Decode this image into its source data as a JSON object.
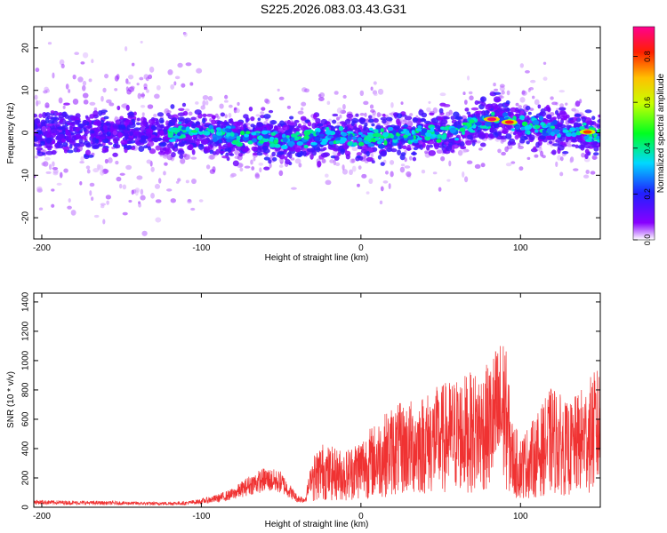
{
  "title": "S225.2026.083.03.43.G31",
  "colors": {
    "snr_line": "#f03232",
    "spectral_ridge": "#1428d8"
  },
  "chart_data": [
    {
      "type": "heatmap",
      "xlabel": "Height of straight line (km)",
      "ylabel": "Frequency (Hz)",
      "xlim": [
        -205,
        150
      ],
      "ylim": [
        -25,
        25
      ],
      "x_ticks": [
        -200,
        -100,
        0,
        100
      ],
      "y_ticks": [
        -20,
        -10,
        0,
        10,
        20
      ],
      "colorbar": {
        "label": "Normalized spectral amplitude",
        "range": [
          0,
          0.93
        ],
        "ticks": [
          0.0,
          0.2,
          0.4,
          0.6,
          0.8
        ],
        "colormap": "rainbow"
      },
      "ridge": {
        "x": [
          -205,
          -150,
          -100,
          -60,
          -45,
          -20,
          0,
          20,
          40,
          60,
          70,
          80,
          90,
          100,
          120,
          140,
          150
        ],
        "frequency": [
          0,
          0,
          0,
          -1,
          -2,
          -1,
          -1,
          -1,
          0,
          0,
          2,
          3,
          3,
          2,
          1,
          0,
          -1
        ]
      },
      "peaks": [
        {
          "x": 82,
          "frequency": 3.2,
          "amplitude": 0.9
        },
        {
          "x": 93,
          "frequency": 2.5,
          "amplitude": 0.85
        },
        {
          "x": 142,
          "frequency": 0.2,
          "amplitude": 0.8
        }
      ]
    },
    {
      "type": "line",
      "xlabel": "Height of straight line (km)",
      "ylabel": "SNR (10 * v/v)",
      "xlim": [
        -205,
        150
      ],
      "ylim": [
        0,
        1460
      ],
      "x_ticks": [
        -200,
        -100,
        0,
        100
      ],
      "y_ticks": [
        0,
        200,
        400,
        600,
        800,
        1000,
        1200,
        1400
      ],
      "series": [
        {
          "x": [
            -205,
            -190,
            -170,
            -150,
            -130,
            -110,
            -100,
            -90,
            -80,
            -70,
            -60,
            -50,
            -40,
            -35,
            -30,
            -25,
            -20,
            -10,
            0,
            10,
            20,
            30,
            40,
            50,
            60,
            70,
            80,
            85,
            90,
            95,
            100,
            110,
            120,
            130,
            140,
            150
          ],
          "y": [
            35,
            32,
            30,
            28,
            25,
            28,
            40,
            60,
            90,
            150,
            190,
            170,
            60,
            50,
            250,
            320,
            300,
            280,
            350,
            420,
            500,
            520,
            560,
            600,
            640,
            660,
            700,
            800,
            850,
            420,
            350,
            450,
            600,
            500,
            600,
            700
          ]
        }
      ]
    }
  ]
}
